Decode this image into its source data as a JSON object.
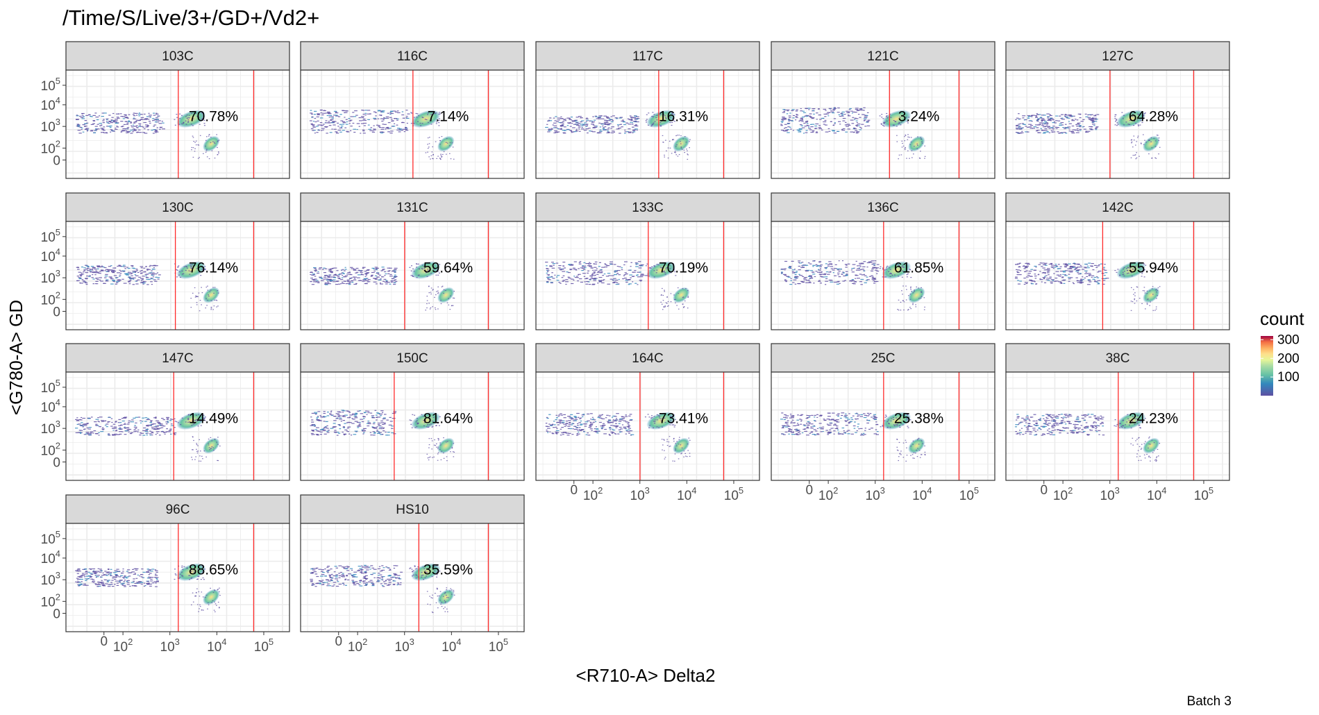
{
  "chart_data": {
    "type": "heatmap",
    "title": "/Time/S/Live/3+/GD+/Vd2+",
    "xlabel": "<R710-A> Delta2",
    "ylabel": "<G780-A> GD",
    "caption": "Batch 3",
    "legend": {
      "title": "count",
      "ticks": [
        300,
        200,
        100
      ],
      "placement": "right"
    },
    "x_tick_labels": [
      {
        "label": "0",
        "exp": ""
      },
      {
        "label": "10",
        "exp": "2"
      },
      {
        "label": "10",
        "exp": "3"
      },
      {
        "label": "10",
        "exp": "4"
      },
      {
        "label": "10",
        "exp": "5"
      }
    ],
    "y_tick_labels": [
      {
        "label": "10",
        "exp": "5"
      },
      {
        "label": "10",
        "exp": "4"
      },
      {
        "label": "10",
        "exp": "3"
      },
      {
        "label": "10",
        "exp": "2"
      },
      {
        "label": "0",
        "exp": ""
      }
    ],
    "grid": true,
    "panels": [
      {
        "name": "103C",
        "percentage": "70.78%",
        "gate": [
          1500,
          60000
        ]
      },
      {
        "name": "116C",
        "percentage": "7.14%",
        "gate": [
          1500,
          60000
        ]
      },
      {
        "name": "117C",
        "percentage": "16.31%",
        "gate": [
          2500,
          60000
        ]
      },
      {
        "name": "121C",
        "percentage": "3.24%",
        "gate": [
          2000,
          60000
        ]
      },
      {
        "name": "127C",
        "percentage": "64.28%",
        "gate": [
          1000,
          60000
        ]
      },
      {
        "name": "130C",
        "percentage": "76.14%",
        "gate": [
          1300,
          60000
        ]
      },
      {
        "name": "131C",
        "percentage": "59.64%",
        "gate": [
          1000,
          60000
        ]
      },
      {
        "name": "133C",
        "percentage": "70.19%",
        "gate": [
          1500,
          60000
        ]
      },
      {
        "name": "136C",
        "percentage": "61.85%",
        "gate": [
          1500,
          60000
        ]
      },
      {
        "name": "142C",
        "percentage": "55.94%",
        "gate": [
          700,
          60000
        ]
      },
      {
        "name": "147C",
        "percentage": "14.49%",
        "gate": [
          1200,
          60000
        ]
      },
      {
        "name": "150C",
        "percentage": "81.64%",
        "gate": [
          600,
          60000
        ]
      },
      {
        "name": "164C",
        "percentage": "73.41%",
        "gate": [
          1000,
          60000
        ]
      },
      {
        "name": "25C",
        "percentage": "25.38%",
        "gate": [
          1500,
          60000
        ]
      },
      {
        "name": "38C",
        "percentage": "24.23%",
        "gate": [
          1500,
          60000
        ]
      },
      {
        "name": "96C",
        "percentage": "88.65%",
        "gate": [
          1500,
          60000
        ]
      },
      {
        "name": "HS10",
        "percentage": "35.59%",
        "gate": [
          2000,
          60000
        ]
      }
    ]
  }
}
